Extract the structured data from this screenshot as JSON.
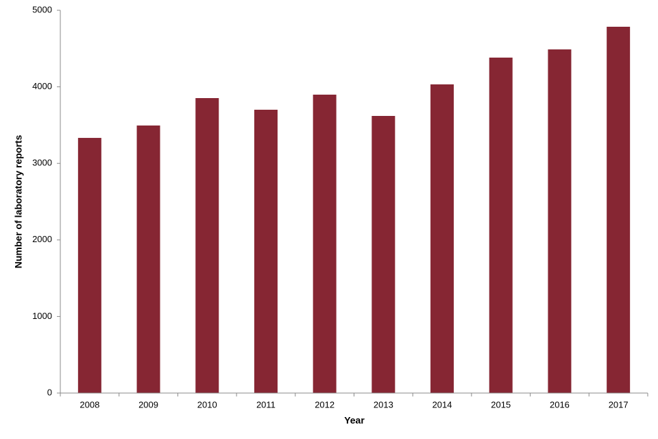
{
  "chart_data": {
    "type": "bar",
    "x_label": "Year",
    "y_label": "Number of laboratory reports",
    "categories": [
      "2008",
      "2009",
      "2010",
      "2011",
      "2012",
      "2013",
      "2014",
      "2015",
      "2016",
      "2017"
    ],
    "values": [
      3333,
      3495,
      3853,
      3701,
      3898,
      3620,
      4032,
      4382,
      4489,
      4785
    ],
    "color": "#862633",
    "ylim": [
      0,
      5000
    ],
    "yticks": [
      0,
      1000,
      2000,
      3000,
      4000,
      5000
    ],
    "grid": false
  }
}
